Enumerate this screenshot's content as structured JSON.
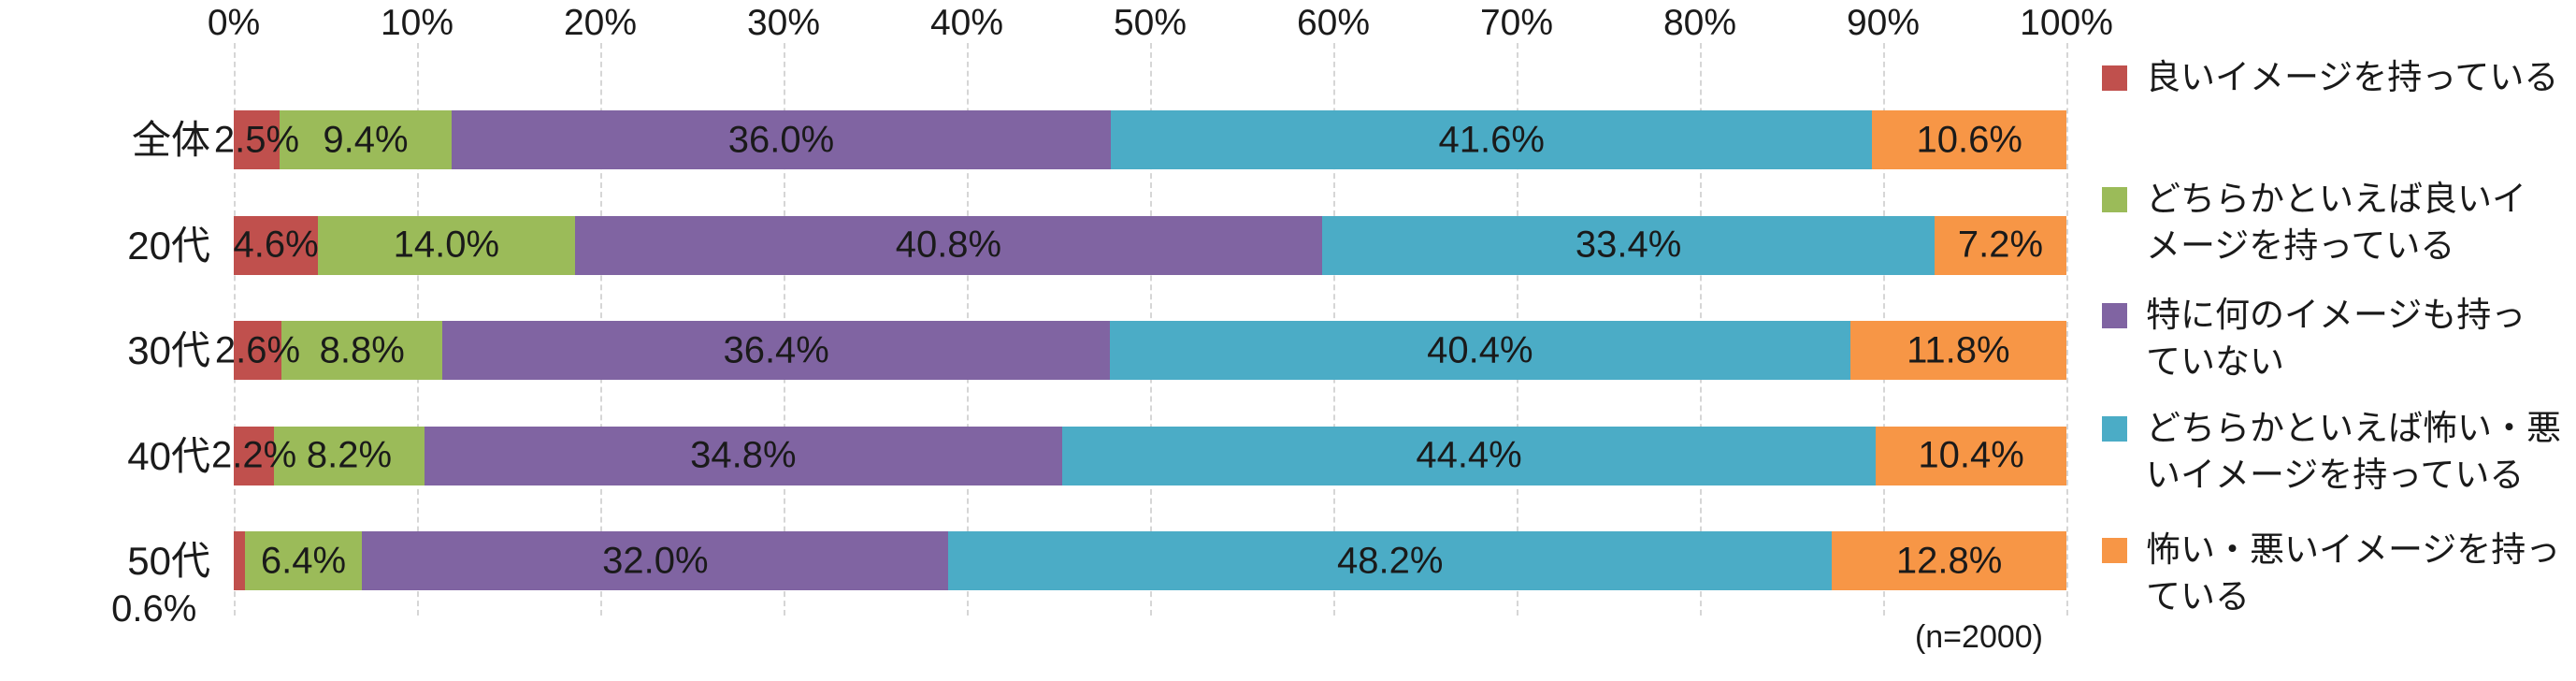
{
  "chart_data": {
    "type": "bar",
    "variant": "horizontal-stacked-100",
    "title": "",
    "xlabel": "",
    "ylabel": "",
    "x_axis": {
      "position": "top",
      "min": 0,
      "max": 100,
      "tick_step": 10,
      "ticks": [
        "0%",
        "10%",
        "20%",
        "30%",
        "40%",
        "50%",
        "60%",
        "70%",
        "80%",
        "90%",
        "100%"
      ]
    },
    "grid": true,
    "legend_position": "right",
    "categories": [
      "全体",
      "20代",
      "30代",
      "40代",
      "50代"
    ],
    "series": [
      {
        "name": "良いイメージを持っている",
        "legend_label": "良いイメージを持っている",
        "color": "#C0504D",
        "values": [
          2.5,
          4.6,
          2.6,
          2.2,
          0.6
        ],
        "labels": [
          "2.5%",
          "4.6%",
          "2.6%",
          "2.2%",
          "0.6%"
        ]
      },
      {
        "name": "どちらかといえば良いイメージを持っている",
        "legend_label": "どちらかといえば良いイ\nメージを持っている",
        "color": "#9BBB59",
        "values": [
          9.4,
          14.0,
          8.8,
          8.2,
          6.4
        ],
        "labels": [
          "9.4%",
          "14.0%",
          "8.8%",
          "8.2%",
          "6.4%"
        ]
      },
      {
        "name": "特に何のイメージも持っていない",
        "legend_label": "特に何のイメージも持っ\nていない",
        "color": "#8064A2",
        "values": [
          36.0,
          40.8,
          36.4,
          34.8,
          32.0
        ],
        "labels": [
          "36.0%",
          "40.8%",
          "36.4%",
          "34.8%",
          "32.0%"
        ]
      },
      {
        "name": "どちらかといえば怖い・悪いイメージを持っている",
        "legend_label": "どちらかといえば怖い・悪\nいイメージを持っている",
        "color": "#4BACC6",
        "values": [
          41.6,
          33.4,
          40.4,
          44.4,
          48.2
        ],
        "labels": [
          "41.6%",
          "33.4%",
          "40.4%",
          "44.4%",
          "48.2%"
        ]
      },
      {
        "name": "怖い・悪いイメージを持っている",
        "legend_label": "怖い・悪いイメージを持っ\nている",
        "color": "#F79646",
        "values": [
          10.6,
          7.2,
          11.8,
          10.4,
          12.8
        ],
        "labels": [
          "10.6%",
          "7.2%",
          "11.8%",
          "10.4%",
          "12.8%"
        ]
      }
    ],
    "outside_labels": [
      {
        "category_index": 4,
        "series_index": 0,
        "position": "below"
      }
    ],
    "note": "(n=2000)",
    "colors": {
      "gridline": "#d6d6d6",
      "text": "#1a1a1a",
      "background": "#ffffff"
    }
  }
}
